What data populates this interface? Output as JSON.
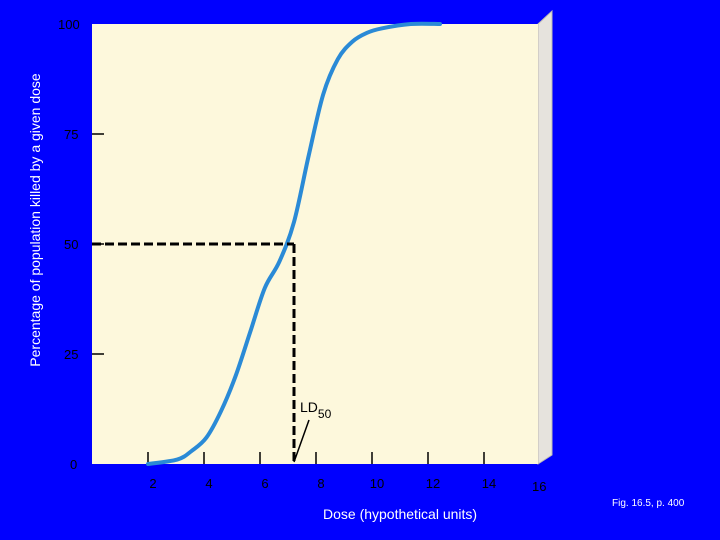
{
  "chart_data": {
    "type": "line",
    "title": "",
    "ylabel": "Percentage of population killed by a given dose",
    "xlabel": "Dose (hypothetical units)",
    "xlim": [
      0,
      16
    ],
    "ylim": [
      0,
      100
    ],
    "y_ticks": [
      "0",
      "25",
      "50",
      "75",
      "100"
    ],
    "x_ticks": [
      "2",
      "4",
      "6",
      "8",
      "10",
      "12",
      "14",
      "16"
    ],
    "series": [
      {
        "x": [
          2.0,
          3.0,
          3.5,
          4.0,
          4.5,
          5.0,
          5.5,
          6.0,
          6.5,
          7.0,
          7.5,
          8.0,
          8.5,
          9.0,
          9.5,
          10.0,
          11.0,
          12.0
        ],
        "y": [
          0,
          1,
          3,
          6,
          12,
          20,
          30,
          40,
          46,
          55,
          70,
          84,
          92,
          96,
          98,
          99,
          100,
          100
        ]
      }
    ],
    "reference": {
      "x": 7.0,
      "y": 50
    },
    "annotation": {
      "text": "LD",
      "subscript": "50"
    },
    "colors": {
      "background": "#0000ff",
      "plot_face": "#fdf8dc",
      "plot_side": "#e6e3dd",
      "curve": "#2a8ad6",
      "axis_text": "#000000"
    },
    "grid": false
  },
  "caption": "Fig. 16.5, p. 400"
}
